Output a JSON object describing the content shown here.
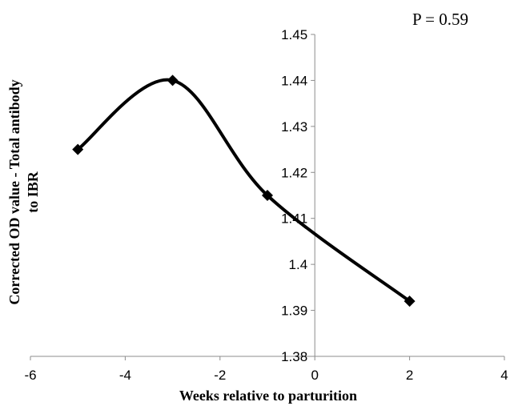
{
  "chart_data": {
    "type": "line",
    "smooth": true,
    "x": [
      -5,
      -3,
      -1,
      2
    ],
    "y": [
      1.425,
      1.44,
      1.415,
      1.392
    ],
    "xlabel": "Weeks  relative to parturition",
    "ylabel_lines": [
      "Corrected  OD value - Total antibody",
      "to IBR"
    ],
    "xlim": [
      -6,
      4
    ],
    "ylim": [
      1.38,
      1.45
    ],
    "xticks": [
      -6,
      -4,
      -2,
      0,
      2,
      4
    ],
    "yticks": [
      1.38,
      1.39,
      1.4,
      1.41,
      1.42,
      1.43,
      1.44,
      1.45
    ],
    "xtick_labels": [
      "-6",
      "-4",
      "-2",
      "0",
      "2",
      "4"
    ],
    "ytick_labels": [
      "1.38",
      "1.39",
      "1.4",
      "1.41",
      "1.42",
      "1.43",
      "1.44",
      "1.45"
    ],
    "marker": "diamond",
    "line_color": "#000000",
    "grid": false,
    "annotation": "P = 0.59"
  }
}
